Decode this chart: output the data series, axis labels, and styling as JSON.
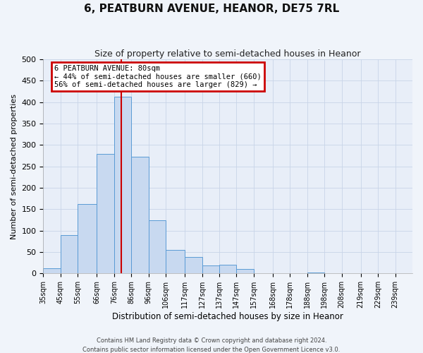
{
  "title": "6, PEATBURN AVENUE, HEANOR, DE75 7RL",
  "subtitle": "Size of property relative to semi-detached houses in Heanor",
  "xlabel": "Distribution of semi-detached houses by size in Heanor",
  "ylabel": "Number of semi-detached properties",
  "bin_labels": [
    "35sqm",
    "45sqm",
    "55sqm",
    "66sqm",
    "76sqm",
    "86sqm",
    "96sqm",
    "106sqm",
    "117sqm",
    "127sqm",
    "137sqm",
    "147sqm",
    "157sqm",
    "168sqm",
    "178sqm",
    "188sqm",
    "198sqm",
    "208sqm",
    "219sqm",
    "229sqm",
    "239sqm"
  ],
  "bin_edges": [
    35,
    45,
    55,
    66,
    76,
    86,
    96,
    106,
    117,
    127,
    137,
    147,
    157,
    168,
    178,
    188,
    198,
    208,
    219,
    229,
    239,
    249
  ],
  "bar_heights": [
    12,
    90,
    163,
    280,
    413,
    273,
    125,
    55,
    38,
    18,
    20,
    10,
    0,
    0,
    0,
    2,
    0,
    0,
    0,
    0,
    0
  ],
  "bar_color": "#c8d9f0",
  "bar_edge_color": "#5a9bd5",
  "vline_x": 80,
  "vline_color": "#cc0000",
  "annotation_title": "6 PEATBURN AVENUE: 80sqm",
  "annotation_line1": "← 44% of semi-detached houses are smaller (660)",
  "annotation_line2": "56% of semi-detached houses are larger (829) →",
  "annotation_box_color": "#cc0000",
  "ylim": [
    0,
    500
  ],
  "yticks": [
    0,
    50,
    100,
    150,
    200,
    250,
    300,
    350,
    400,
    450,
    500
  ],
  "grid_color": "#c8d4e8",
  "bg_color": "#e8eef8",
  "fig_bg_color": "#f0f4fa",
  "footer_line1": "Contains HM Land Registry data © Crown copyright and database right 2024.",
  "footer_line2": "Contains public sector information licensed under the Open Government Licence v3.0."
}
